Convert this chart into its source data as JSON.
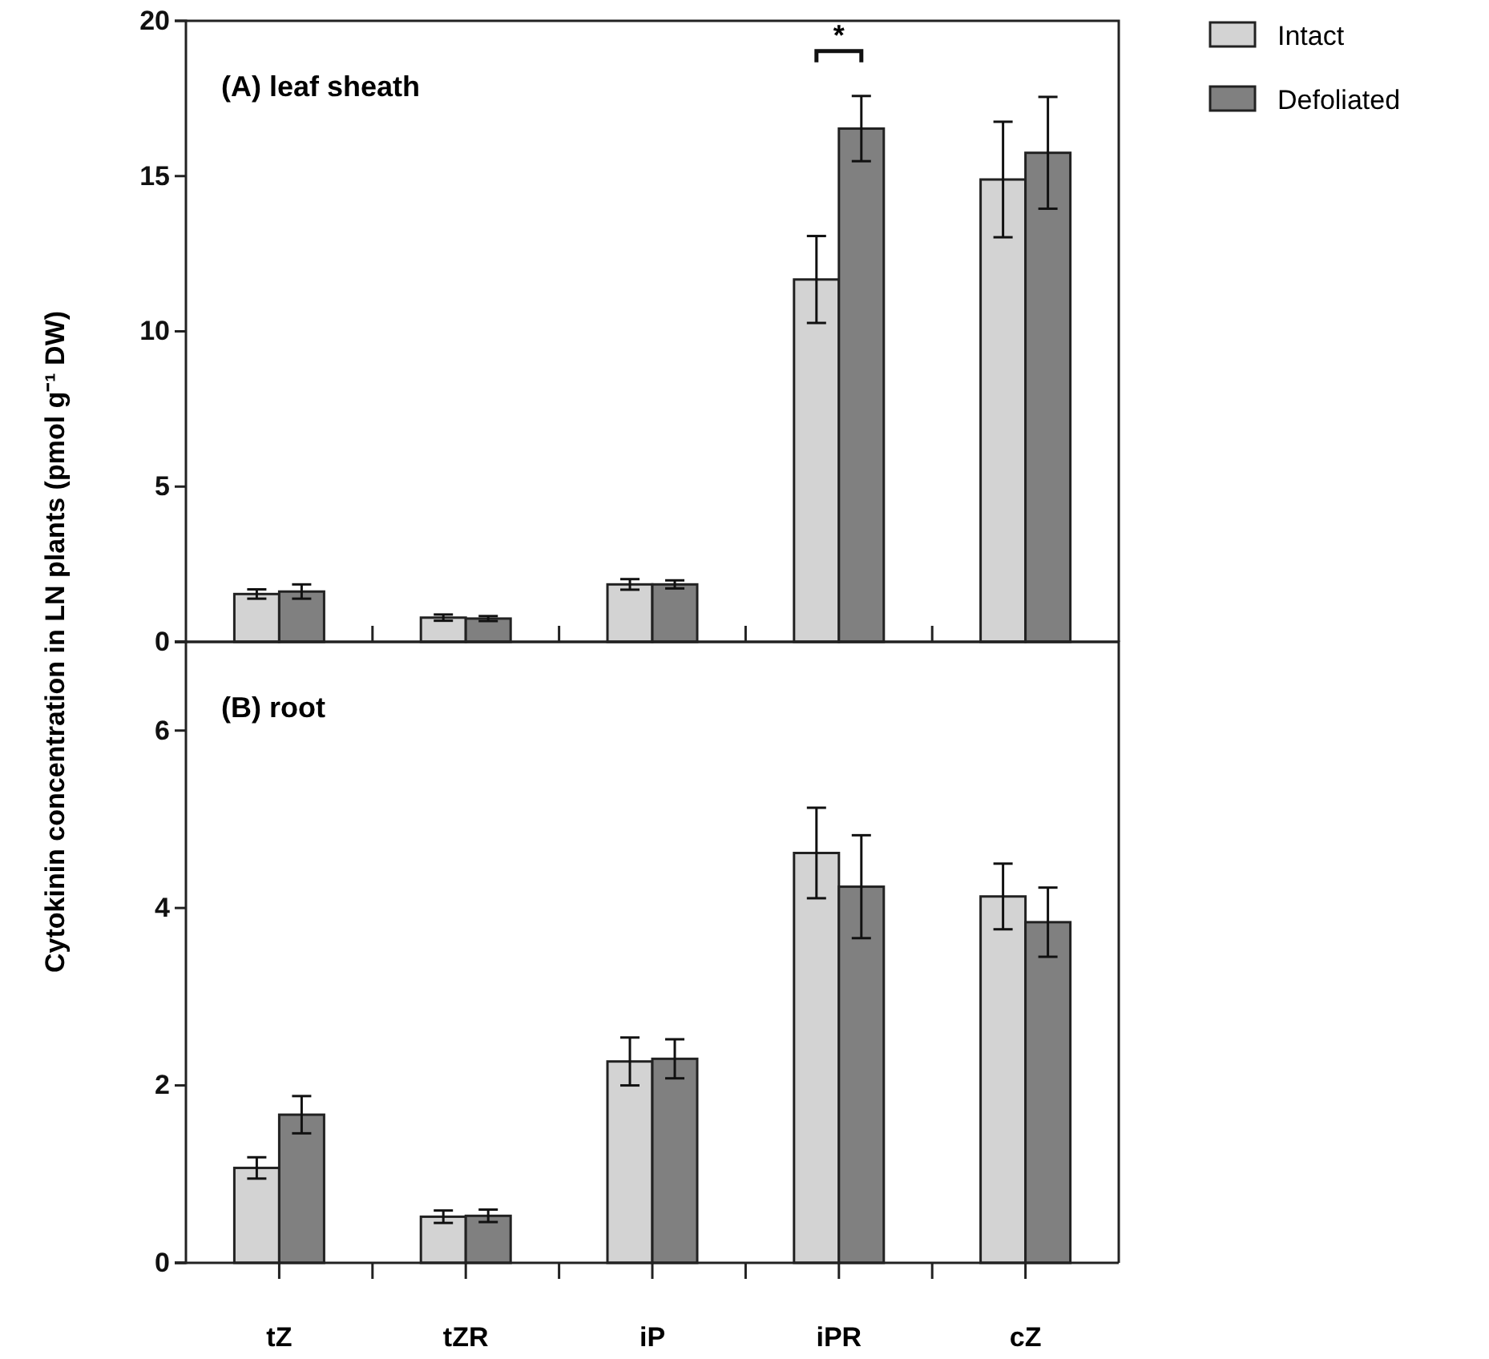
{
  "chart_data": [
    {
      "type": "bar",
      "title": "(A) leaf sheath",
      "ylabel": "Cytokinin concentration in LN plants (pmol g⁻¹ DW)",
      "categories": [
        null,
        null,
        null,
        null,
        null
      ],
      "series": [
        {
          "name": "Intact",
          "color": "#d3d3d3",
          "values": [
            1.54,
            0.78,
            1.85,
            11.67,
            14.89
          ],
          "errors": [
            0.15,
            0.1,
            0.17,
            1.4,
            1.86
          ]
        },
        {
          "name": "Defoliated",
          "color": "#808080",
          "values": [
            1.62,
            0.75,
            1.85,
            16.53,
            15.75
          ],
          "errors": [
            0.23,
            0.08,
            0.13,
            1.05,
            1.8
          ]
        }
      ],
      "ylim": [
        0,
        20
      ],
      "yticks": [
        0,
        5,
        10,
        15,
        20
      ],
      "legend": "top right",
      "tick_labels": "y",
      "annotations": [
        "*"
      ]
    },
    {
      "type": "bar",
      "title": "(B) root",
      "categories": [
        "tZ",
        "tZR",
        "iP",
        "iPR",
        "cZ"
      ],
      "series": [
        {
          "color": "#d3d3d3",
          "values": [
            1.07,
            0.52,
            2.27,
            4.62,
            4.13
          ],
          "errors": [
            0.12,
            0.07,
            0.27,
            0.51,
            0.37
          ]
        },
        {
          "color": "#808080",
          "values": [
            1.67,
            0.53,
            2.3,
            4.24,
            3.84
          ],
          "errors": [
            0.21,
            0.07,
            0.22,
            0.58,
            0.39
          ]
        }
      ],
      "ylim": [
        0,
        7
      ],
      "yticks": [
        0,
        2,
        4,
        6
      ]
    }
  ]
}
